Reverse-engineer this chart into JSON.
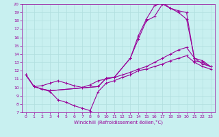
{
  "title": "",
  "xlabel": "Windchill (Refroidissement éolien,°C)",
  "ylabel": "",
  "xlim": [
    -0.5,
    23.5
  ],
  "ylim": [
    7,
    20
  ],
  "xticks": [
    0,
    1,
    2,
    3,
    4,
    5,
    6,
    7,
    8,
    9,
    10,
    11,
    12,
    13,
    14,
    15,
    16,
    17,
    18,
    19,
    20,
    21,
    22,
    23
  ],
  "yticks": [
    7,
    8,
    9,
    10,
    11,
    12,
    13,
    14,
    15,
    16,
    17,
    18,
    19,
    20
  ],
  "bg_color": "#c8f0f0",
  "line_color": "#990099",
  "grid_color": "#b0dede",
  "lines": [
    {
      "x": [
        0,
        1,
        2,
        3,
        9,
        10,
        11,
        13,
        14,
        15,
        16,
        17,
        18,
        19,
        20,
        21,
        22,
        23
      ],
      "y": [
        11.5,
        10.1,
        9.8,
        9.6,
        10.1,
        11.1,
        11.2,
        13.5,
        15.8,
        18.0,
        18.5,
        20.0,
        19.5,
        19.2,
        19.0,
        13.2,
        13.0,
        12.5
      ]
    },
    {
      "x": [
        0,
        1,
        2,
        3,
        9,
        10,
        11,
        13,
        14,
        15,
        16,
        17,
        18,
        19,
        20,
        21,
        22,
        23
      ],
      "y": [
        11.5,
        10.1,
        9.8,
        9.6,
        10.1,
        11.1,
        11.2,
        13.5,
        16.2,
        18.2,
        19.8,
        20.2,
        19.5,
        19.0,
        18.2,
        13.5,
        13.2,
        12.5
      ]
    },
    {
      "x": [
        0,
        1,
        2,
        3,
        4,
        5,
        6,
        7,
        8,
        9,
        10,
        11,
        12,
        13,
        14,
        15,
        16,
        17,
        18,
        19,
        20,
        21,
        22,
        23
      ],
      "y": [
        11.5,
        10.1,
        10.2,
        10.5,
        10.8,
        10.5,
        10.2,
        10.0,
        10.3,
        10.8,
        11.0,
        11.2,
        11.5,
        11.8,
        12.2,
        12.5,
        13.0,
        13.5,
        14.0,
        14.5,
        14.8,
        13.5,
        12.8,
        12.5
      ]
    },
    {
      "x": [
        0,
        1,
        2,
        3,
        4,
        5,
        6,
        7,
        8,
        9,
        10,
        11,
        12,
        13,
        14,
        15,
        16,
        17,
        18,
        19,
        20,
        21,
        22,
        23
      ],
      "y": [
        11.5,
        10.1,
        9.8,
        9.5,
        8.5,
        8.2,
        7.8,
        7.5,
        7.2,
        9.5,
        10.5,
        10.8,
        11.2,
        11.5,
        12.0,
        12.2,
        12.5,
        12.8,
        13.2,
        13.5,
        13.8,
        13.0,
        12.5,
        12.2
      ]
    }
  ]
}
